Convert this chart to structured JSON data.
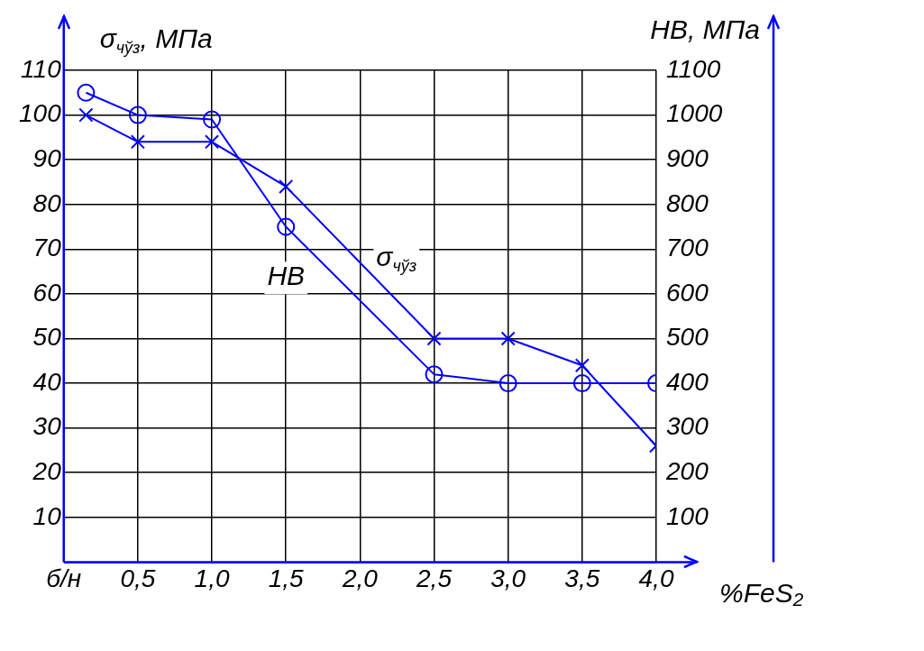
{
  "chart_data": {
    "type": "line",
    "ylabel": "σ$_{чўз}$, МПа",
    "y2label": "HB, МПа",
    "xlabel": "%FeS₂",
    "x": [
      0.15,
      0.5,
      1.0,
      1.5,
      2.5,
      3.0,
      3.5,
      4.0
    ],
    "xlim": [
      0,
      4.0
    ],
    "xticks": [
      {
        "value": 0,
        "label": "б/н"
      },
      {
        "value": 0.5,
        "label": "0,5"
      },
      {
        "value": 1.0,
        "label": "1,0"
      },
      {
        "value": 1.5,
        "label": "1,5"
      },
      {
        "value": 2.0,
        "label": "2,0"
      },
      {
        "value": 2.5,
        "label": "2,5"
      },
      {
        "value": 3.0,
        "label": "3,0"
      },
      {
        "value": 3.5,
        "label": "3,5"
      },
      {
        "value": 4.0,
        "label": "4,0"
      }
    ],
    "ylim": [
      0,
      110
    ],
    "yticks": [
      {
        "value": 0,
        "label": null
      },
      10,
      20,
      30,
      40,
      50,
      60,
      70,
      80,
      90,
      100,
      110
    ],
    "y2lim": [
      0,
      1100
    ],
    "y2ticks": [
      100,
      200,
      300,
      400,
      500,
      600,
      700,
      800,
      900,
      1000,
      1100
    ],
    "series": [
      {
        "name": "HB",
        "color": "#0000ff",
        "axis": "y2",
        "marker": "circle",
        "values": [
          1050,
          1000,
          990,
          750,
          420,
          400,
          400,
          400
        ]
      },
      {
        "name": "σ$_{чўз}$",
        "color": "#0000ff",
        "marker": "cross",
        "values": [
          100,
          94,
          94,
          84,
          50,
          50,
          44,
          26
        ]
      }
    ],
    "grid": true,
    "legend": false,
    "line_style": "solid"
  }
}
